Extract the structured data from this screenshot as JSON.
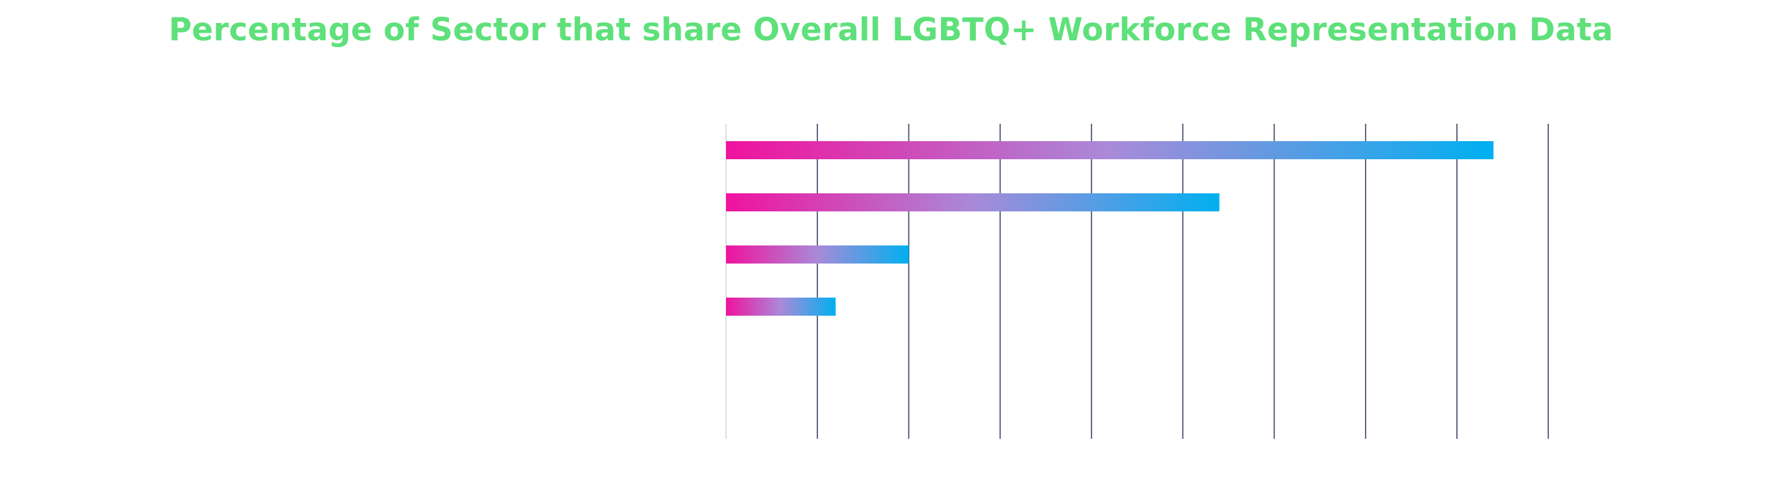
{
  "chart_data": {
    "type": "bar",
    "orientation": "horizontal",
    "title": "Percentage of Sector that share Overall LGBTQ+ Workforce Representation Data",
    "categories": [
      "",
      "",
      "",
      "",
      "",
      ""
    ],
    "values": [
      84,
      54,
      20,
      12,
      0,
      0
    ],
    "xlim": [
      0,
      90
    ],
    "tick_step": 10,
    "xlabel": "",
    "ylabel": "",
    "grid": true,
    "legend": "none",
    "colors": {
      "title": "#5ee07a",
      "gridline": "#3d4a66",
      "zero_axis": "#d6d6d6",
      "bar_gradient_start": "#f0129e",
      "bar_gradient_mid": "#a98ad8",
      "bar_gradient_end": "#00b0f0"
    }
  }
}
